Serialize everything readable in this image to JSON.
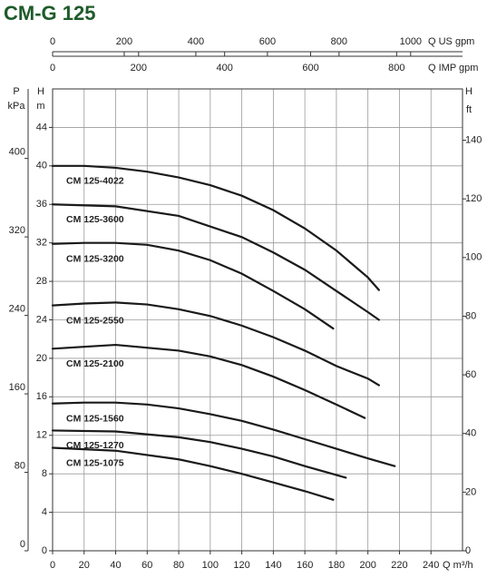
{
  "chart_data": {
    "type": "line",
    "title": "CM-G 125",
    "x_label": "Q m³/h",
    "y_label_symbol": "H",
    "y_label_unit": "m",
    "xlim": [
      0,
      260
    ],
    "xticks": [
      0,
      20,
      40,
      60,
      80,
      100,
      120,
      140,
      160,
      180,
      200,
      220,
      240
    ],
    "ylim": [
      0,
      48
    ],
    "yticks": [
      0,
      4,
      8,
      12,
      16,
      20,
      24,
      28,
      32,
      36,
      40,
      44
    ],
    "grid": true,
    "p_axis": {
      "symbol": "P",
      "unit": "kPa",
      "lim": [
        0,
        470.9
      ],
      "ticks": [
        0,
        80,
        160,
        240,
        320,
        400
      ]
    },
    "ft_axis": {
      "symbol": "H",
      "unit": "ft",
      "lim": [
        0,
        157.5
      ],
      "ticks": [
        0,
        20,
        40,
        60,
        80,
        100,
        120,
        140
      ]
    },
    "us_gpm_axis": {
      "label": "Q US gpm",
      "lim": [
        0,
        1144.8
      ],
      "ticks": [
        0,
        200,
        400,
        600,
        800,
        1000
      ]
    },
    "imp_gpm_axis": {
      "label": "Q IMP gpm",
      "lim": [
        0,
        953.2
      ],
      "ticks": [
        0,
        200,
        400,
        600,
        800
      ]
    },
    "series": [
      {
        "name": "CM 125-4022",
        "color": "#1a1a1a",
        "x": [
          0,
          20,
          40,
          60,
          80,
          100,
          120,
          140,
          160,
          180,
          200,
          207
        ],
        "values": [
          40,
          40,
          39.8,
          39.4,
          38.8,
          38,
          36.9,
          35.4,
          33.5,
          31.2,
          28.4,
          27.1
        ]
      },
      {
        "name": "CM 125-3600",
        "color": "#1a1a1a",
        "x": [
          0,
          40,
          80,
          120,
          140,
          160,
          180,
          200,
          207
        ],
        "values": [
          36,
          35.8,
          34.8,
          32.6,
          31,
          29.2,
          27,
          24.8,
          24
        ]
      },
      {
        "name": "CM 125-3200",
        "color": "#1a1a1a",
        "x": [
          0,
          20,
          40,
          60,
          80,
          100,
          120,
          140,
          160,
          178
        ],
        "values": [
          31.9,
          32,
          32,
          31.8,
          31.2,
          30.2,
          28.8,
          27,
          25.1,
          23.1
        ]
      },
      {
        "name": "CM 125-2550",
        "color": "#1a1a1a",
        "x": [
          0,
          20,
          40,
          60,
          80,
          100,
          120,
          140,
          160,
          180,
          200,
          207
        ],
        "values": [
          25.5,
          25.7,
          25.8,
          25.6,
          25.1,
          24.4,
          23.4,
          22.2,
          20.8,
          19.2,
          17.9,
          17.2
        ]
      },
      {
        "name": "CM 125-2100",
        "color": "#1a1a1a",
        "x": [
          0,
          40,
          80,
          100,
          120,
          140,
          160,
          180,
          198
        ],
        "values": [
          21,
          21.4,
          20.8,
          20.2,
          19.3,
          18.1,
          16.7,
          15.2,
          13.8
        ]
      },
      {
        "name": "CM 125-1560",
        "color": "#1a1a1a",
        "x": [
          0,
          20,
          40,
          60,
          80,
          100,
          120,
          140,
          160,
          180,
          200,
          217
        ],
        "values": [
          15.3,
          15.4,
          15.4,
          15.2,
          14.8,
          14.2,
          13.5,
          12.6,
          11.6,
          10.6,
          9.6,
          8.8
        ]
      },
      {
        "name": "CM 125-1270",
        "color": "#1a1a1a",
        "x": [
          0,
          40,
          80,
          100,
          120,
          140,
          160,
          186
        ],
        "values": [
          12.5,
          12.4,
          11.8,
          11.3,
          10.6,
          9.8,
          8.8,
          7.6
        ]
      },
      {
        "name": "CM 125-1075",
        "color": "#1a1a1a",
        "x": [
          0,
          40,
          80,
          100,
          120,
          140,
          160,
          178
        ],
        "values": [
          10.7,
          10.4,
          9.5,
          8.8,
          8,
          7.1,
          6.2,
          5.3
        ]
      }
    ]
  }
}
